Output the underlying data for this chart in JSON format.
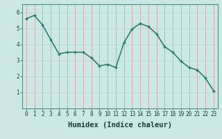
{
  "x": [
    0,
    1,
    2,
    3,
    4,
    5,
    6,
    7,
    8,
    9,
    10,
    11,
    12,
    13,
    14,
    15,
    16,
    17,
    18,
    19,
    20,
    21,
    22,
    23
  ],
  "y": [
    5.6,
    5.8,
    5.2,
    4.3,
    3.4,
    3.5,
    3.5,
    3.5,
    3.15,
    2.65,
    2.75,
    2.55,
    4.1,
    4.95,
    5.3,
    5.1,
    4.65,
    3.85,
    3.5,
    2.95,
    2.55,
    2.4,
    1.9,
    1.1
  ],
  "line_color": "#2e7d6e",
  "marker": "D",
  "marker_size": 2.0,
  "bg_color": "#cce8e4",
  "grid_color_v": "#d4a0a0",
  "grid_color_h": "#b8d8d4",
  "xlabel": "Humidex (Indice chaleur)",
  "xlim": [
    -0.5,
    23.5
  ],
  "ylim": [
    0,
    6.5
  ],
  "yticks": [
    1,
    2,
    3,
    4,
    5,
    6
  ],
  "xticks": [
    0,
    1,
    2,
    3,
    4,
    5,
    6,
    7,
    8,
    9,
    10,
    11,
    12,
    13,
    14,
    15,
    16,
    17,
    18,
    19,
    20,
    21,
    22,
    23
  ],
  "tick_fontsize": 5.5,
  "label_fontsize": 7.5,
  "line_width": 1.2,
  "spine_color": "#5a8a84"
}
